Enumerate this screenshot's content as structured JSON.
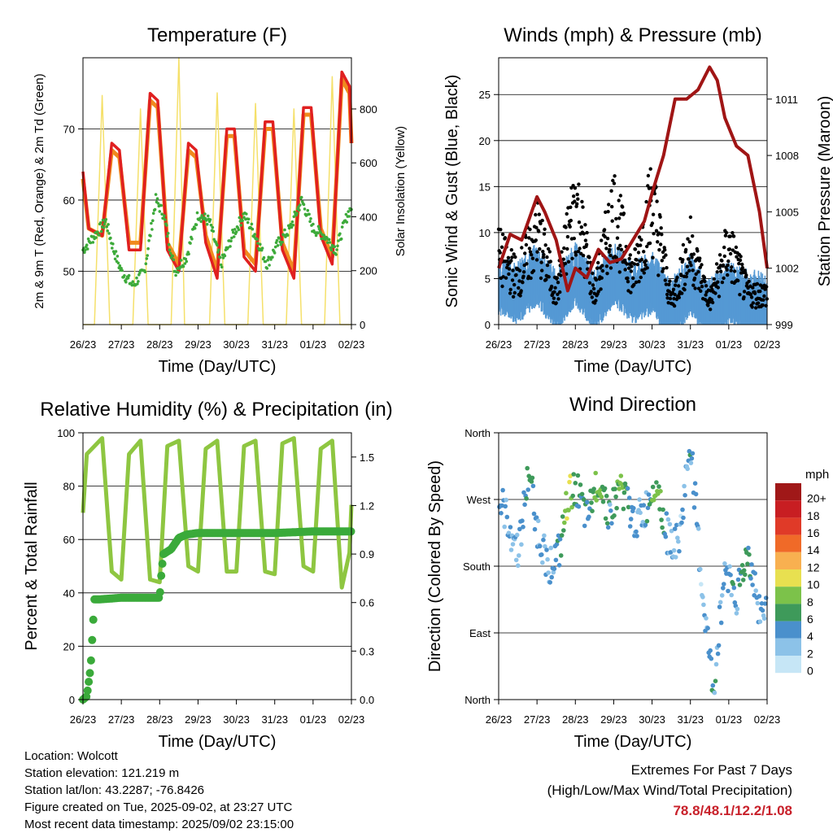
{
  "colors": {
    "temp2m": "#e02020",
    "temp9m": "#f08a1e",
    "dew": "#3daa3a",
    "solar": "#f5e06a",
    "wind": "#5599d4",
    "gust": "#000000",
    "pressure": "#a01515",
    "rh": "#8ec641",
    "precip": "#3aaa3a",
    "extremes": "#c8202a"
  },
  "x_ticks": [
    "26/23",
    "27/23",
    "28/23",
    "29/23",
    "30/23",
    "31/23",
    "01/23",
    "02/23"
  ],
  "panels": {
    "temperature": {
      "title": "Temperature (F)",
      "xlabel": "Time (Day/UTC)",
      "ylabel_left": "2m & 9m T (Red, Orange) & 2m Td (Green)",
      "ylabel_right": "Solar Insolation (Yellow)",
      "yticks_left": [
        "50",
        "60",
        "70"
      ],
      "yticks_right": [
        "0",
        "200",
        "400",
        "600",
        "800"
      ]
    },
    "wind": {
      "title": "Winds (mph) & Pressure (mb)",
      "xlabel": "Time (Day/UTC)",
      "ylabel_left": "Sonic Wind & Gust (Blue, Black)",
      "ylabel_right": "Station Pressure (Maroon)",
      "yticks_left": [
        "0",
        "5",
        "10",
        "15",
        "20",
        "25"
      ],
      "yticks_right": [
        "999",
        "1002",
        "1005",
        "1008",
        "1011"
      ]
    },
    "humidity": {
      "title": "Relative Humidity (%) & Precipitation (in)",
      "xlabel": "Time (Day/UTC)",
      "ylabel_left": "Percent & Total Rainfall",
      "yticks_left": [
        "0",
        "20",
        "40",
        "60",
        "80",
        "100"
      ],
      "yticks_right": [
        "0.0",
        "0.3",
        "0.6",
        "0.9",
        "1.2",
        "1.5"
      ]
    },
    "direction": {
      "title": "Wind Direction",
      "xlabel": "Time (Day/UTC)",
      "ylabel_left": "Direction (Colored By Speed)",
      "yticks_left": [
        "North",
        "East",
        "South",
        "West",
        "North"
      ],
      "legend_title": "mph",
      "legend_labels": [
        "0",
        "2",
        "4",
        "6",
        "8",
        "10",
        "12",
        "14",
        "16",
        "18",
        "20+"
      ],
      "legend_colors": [
        "#c6e6f6",
        "#8cc2e8",
        "#4a90cc",
        "#3e9a5a",
        "#7cc24a",
        "#e8e050",
        "#f8b050",
        "#f06a28",
        "#e03a28",
        "#c81e22",
        "#a01818"
      ]
    }
  },
  "chart_data": [
    {
      "type": "line",
      "title": "Temperature (F)",
      "xlabel": "Time (Day/UTC)",
      "ylabel": "2m & 9m T (Red, Orange) & 2m Td (Green)",
      "ylabel_right": "Solar Insolation (Yellow)",
      "x_unit": "days since 26/23",
      "ylim": [
        42.5,
        80
      ],
      "ylim_right": [
        0,
        990
      ],
      "grid": "horizontal",
      "series": [
        {
          "name": "2m T",
          "x": [
            0,
            0.15,
            0.5,
            0.75,
            0.95,
            1.2,
            1.5,
            1.75,
            1.95,
            2.2,
            2.5,
            2.75,
            2.95,
            3.2,
            3.5,
            3.75,
            3.95,
            4.2,
            4.5,
            4.75,
            4.95,
            5.2,
            5.5,
            5.75,
            5.95,
            6.2,
            6.5,
            6.75,
            6.95,
            7.0
          ],
          "y": [
            64,
            56,
            55,
            68,
            67,
            53,
            53,
            75,
            74,
            53,
            50,
            68,
            67,
            54,
            49,
            70,
            70,
            52,
            50,
            71,
            71,
            53,
            49,
            73,
            73,
            55,
            51,
            78,
            76,
            68
          ]
        },
        {
          "name": "9m T",
          "x": [
            0,
            0.15,
            0.5,
            0.75,
            0.95,
            1.2,
            1.5,
            1.75,
            1.95,
            2.2,
            2.5,
            2.75,
            2.95,
            3.2,
            3.5,
            3.75,
            3.95,
            4.2,
            4.5,
            4.75,
            4.95,
            5.2,
            5.5,
            5.75,
            5.95,
            6.2,
            6.5,
            6.75,
            6.95,
            7.0
          ],
          "y": [
            63,
            56,
            55,
            67,
            66,
            54,
            54,
            74,
            73,
            54,
            51,
            67,
            66,
            55,
            50,
            69,
            69,
            53,
            51,
            70,
            70,
            54,
            50,
            72,
            72,
            56,
            52,
            77,
            75,
            68
          ]
        },
        {
          "name": "2m Td",
          "x": [
            0,
            0.3,
            0.6,
            0.8,
            1.0,
            1.3,
            1.6,
            1.9,
            2.1,
            2.4,
            2.7,
            3.0,
            3.3,
            3.6,
            3.9,
            4.2,
            4.5,
            4.8,
            5.1,
            5.4,
            5.7,
            6.0,
            6.3,
            6.6,
            6.9,
            7.0
          ],
          "y": [
            53,
            55,
            57,
            53,
            50,
            48,
            50,
            60,
            58,
            50,
            52,
            58,
            57,
            51,
            55,
            58,
            55,
            51,
            54,
            56,
            60,
            56,
            55,
            53,
            58,
            59
          ]
        },
        {
          "name": "Solar Insolation",
          "axis": "right",
          "x": [
            0,
            0.3,
            0.5,
            0.7,
            0.9,
            1.3,
            1.5,
            1.7,
            1.9,
            2.3,
            2.5,
            2.65,
            2.9,
            3.3,
            3.5,
            3.7,
            3.9,
            4.3,
            4.5,
            4.7,
            4.9,
            5.3,
            5.5,
            5.7,
            5.9,
            6.3,
            6.5,
            6.7,
            6.9,
            7.0
          ],
          "y": [
            0,
            0,
            850,
            0,
            0,
            0,
            800,
            0,
            0,
            0,
            990,
            0,
            0,
            0,
            860,
            0,
            0,
            0,
            820,
            0,
            0,
            0,
            800,
            0,
            0,
            0,
            920,
            0,
            0,
            0
          ]
        }
      ]
    },
    {
      "type": "scatter",
      "title": "Winds (mph) & Pressure (mb)",
      "xlabel": "Time (Day/UTC)",
      "ylabel": "Sonic Wind & Gust (Blue, Black)",
      "ylabel_right": "Station Pressure (Maroon)",
      "x_unit": "days since 26/23",
      "ylim": [
        0,
        29
      ],
      "ylim_right": [
        999,
        1013.2
      ],
      "grid": "horizontal",
      "series": [
        {
          "name": "Sonic Wind",
          "x": [
            0,
            0.5,
            1,
            1.5,
            2,
            2.5,
            3,
            3.5,
            4,
            4.5,
            5,
            5.5,
            6,
            6.5,
            7
          ],
          "y": [
            4,
            3,
            5,
            2,
            5,
            2,
            5,
            3,
            4,
            1,
            4,
            1,
            3,
            2,
            2
          ]
        },
        {
          "name": "Gust",
          "x": [
            0,
            0.5,
            1,
            1.5,
            2,
            2.5,
            3,
            3.5,
            4,
            4.5,
            5,
            5.5,
            6,
            6.5,
            7
          ],
          "y": [
            9,
            6,
            12,
            4,
            16,
            4,
            15,
            6,
            16,
            3,
            10,
            3,
            10,
            4,
            4
          ]
        },
        {
          "name": "Station Pressure",
          "axis": "right",
          "x": [
            0,
            0.3,
            0.6,
            1.0,
            1.2,
            1.5,
            1.8,
            2.0,
            2.3,
            2.6,
            2.9,
            3.2,
            3.5,
            3.8,
            4.0,
            4.3,
            4.6,
            4.9,
            5.2,
            5.5,
            5.7,
            5.9,
            6.2,
            6.5,
            6.8,
            7.0
          ],
          "y": [
            1002,
            1003.8,
            1003.5,
            1005.8,
            1005,
            1003.5,
            1000.8,
            1002,
            1001.5,
            1003,
            1002.3,
            1002.5,
            1003.5,
            1004.5,
            1006,
            1008,
            1011,
            1011,
            1011.5,
            1012.7,
            1012,
            1010,
            1008.5,
            1008,
            1005,
            1002
          ]
        }
      ]
    },
    {
      "type": "line",
      "title": "Relative Humidity (%) & Precipitation (in)",
      "xlabel": "Time (Day/UTC)",
      "ylabel": "Percent & Total Rainfall",
      "x_unit": "days since 26/23",
      "ylim": [
        0,
        100
      ],
      "ylim_right": [
        0,
        1.65
      ],
      "grid": "horizontal",
      "series": [
        {
          "name": "Relative Humidity",
          "x": [
            0,
            0.1,
            0.5,
            0.75,
            1.0,
            1.2,
            1.5,
            1.75,
            2.0,
            2.2,
            2.5,
            2.75,
            3.0,
            3.2,
            3.5,
            3.75,
            4.0,
            4.2,
            4.5,
            4.75,
            5.0,
            5.2,
            5.5,
            5.75,
            6.0,
            6.2,
            6.5,
            6.75,
            6.95,
            7.0
          ],
          "y": [
            70,
            92,
            98,
            48,
            45,
            92,
            97,
            45,
            44,
            95,
            97,
            50,
            48,
            94,
            97,
            48,
            48,
            95,
            97,
            48,
            47,
            96,
            98,
            50,
            48,
            94,
            97,
            42,
            55,
            73
          ]
        },
        {
          "name": "Total Precipitation",
          "axis": "right",
          "x": [
            0,
            0.1,
            0.2,
            0.3,
            0.45,
            1.0,
            1.5,
            2.0,
            2.05,
            2.1,
            2.3,
            2.5,
            2.7,
            3.0,
            4.0,
            5.0,
            6.0,
            7.0
          ],
          "y": [
            0,
            0.02,
            0.2,
            0.62,
            0.62,
            0.63,
            0.63,
            0.63,
            0.8,
            0.9,
            0.93,
            1.0,
            1.02,
            1.03,
            1.03,
            1.03,
            1.04,
            1.04
          ]
        }
      ]
    },
    {
      "type": "scatter",
      "title": "Wind Direction",
      "xlabel": "Time (Day/UTC)",
      "ylabel": "Direction (Colored By Speed)",
      "x_unit": "days since 26/23",
      "y_unit": "degrees from North through East, South, West",
      "ylim": [
        0,
        360
      ],
      "legend": "right",
      "series": [
        {
          "name": "Direction",
          "x": [
            0.1,
            0.5,
            0.8,
            1.0,
            1.3,
            1.6,
            1.8,
            2.0,
            2.3,
            2.6,
            2.9,
            3.2,
            3.5,
            3.8,
            4.1,
            4.4,
            4.7,
            5.0,
            5.3,
            5.6,
            5.9,
            6.2,
            6.5,
            6.8
          ],
          "y": [
            260,
            200,
            310,
            230,
            180,
            200,
            270,
            290,
            240,
            300,
            250,
            290,
            240,
            250,
            300,
            220,
            210,
            350,
            150,
            10,
            180,
            140,
            200,
            120
          ],
          "speed": [
            4,
            2,
            6,
            4,
            2,
            5,
            10,
            6,
            4,
            8,
            4,
            8,
            4,
            3,
            8,
            3,
            2,
            4,
            2,
            4,
            3,
            4,
            6,
            3
          ]
        }
      ]
    }
  ],
  "info": [
    "Location: Wolcott",
    "Station elevation: 121.219 m",
    "Station lat/lon: 43.2287; -76.8426",
    "Figure created on Tue, 2025-09-02, at 23:27 UTC",
    "Most recent data timestamp: 2025/09/02 23:15:00"
  ],
  "extremes": {
    "title": "Extremes For Past 7 Days",
    "subtitle": "(High/Low/Max Wind/Total Precipitation)",
    "values": "78.8/48.1/12.2/1.08"
  }
}
